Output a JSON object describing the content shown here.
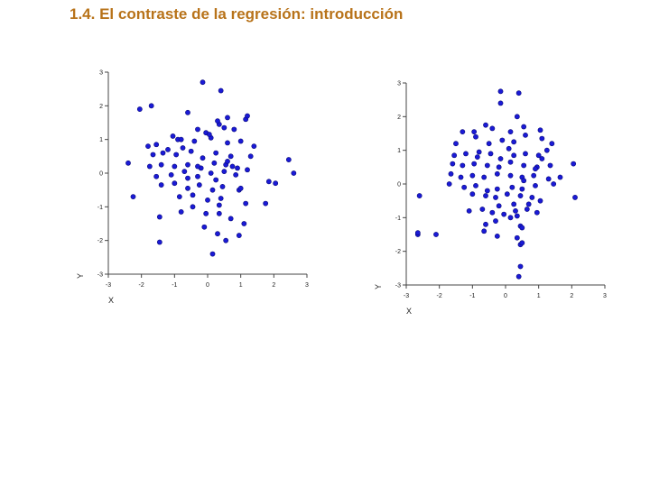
{
  "page": {
    "title": "1.4. El contraste de la regresión: introducción"
  },
  "style": {
    "title_color": "#b8731a",
    "point_color": "#1a1ad6",
    "point_edge": "#0a0a7a",
    "axis_color": "#444444"
  },
  "chart_data": [
    {
      "type": "scatter",
      "title": "",
      "xlabel": "X",
      "ylabel": "Y",
      "xlim": [
        -3,
        3
      ],
      "ylim": [
        -3,
        3
      ],
      "x_ticks": [
        "-3",
        "-2",
        "-1",
        "0",
        "1",
        "2",
        "3"
      ],
      "y_ticks": [
        "3",
        "2",
        "1",
        "0",
        "-1",
        "-2",
        "-3"
      ],
      "grid": false,
      "x": [
        -0.15,
        0.4,
        -2.05,
        -1.7,
        -0.6,
        0.6,
        1.15,
        1.2,
        0.35,
        -0.3,
        -0.05,
        0.3,
        0.8,
        -0.9,
        -1.8,
        -1.55,
        -1.2,
        -0.8,
        -0.4,
        0.1,
        0.6,
        1.0,
        1.4,
        -1.65,
        -1.35,
        -0.95,
        -0.5,
        -0.15,
        0.25,
        0.7,
        1.3,
        2.45,
        -2.4,
        -1.75,
        -1.4,
        -1.0,
        -0.6,
        -0.2,
        0.2,
        0.55,
        0.9,
        2.6,
        -1.55,
        -1.1,
        -0.7,
        -0.3,
        0.1,
        0.5,
        0.85,
        1.2,
        1.85,
        2.05,
        -1.4,
        -1.0,
        -0.6,
        -0.25,
        0.15,
        0.45,
        0.95,
        1.0,
        -2.25,
        -0.85,
        -0.45,
        0.0,
        0.4,
        1.15,
        1.75,
        -1.45,
        -0.8,
        -0.45,
        -0.05,
        0.35,
        0.7,
        1.1,
        -0.1,
        0.3,
        0.55,
        0.95,
        0.15,
        -1.45,
        0.6,
        -0.3,
        0.25,
        -0.6,
        0.75,
        -1.05,
        0.05,
        0.5,
        -0.75,
        0.35
      ],
      "y": [
        2.7,
        2.45,
        1.9,
        2.0,
        1.8,
        1.65,
        1.6,
        1.7,
        1.45,
        1.3,
        1.2,
        1.55,
        1.3,
        1.0,
        0.8,
        0.85,
        0.7,
        1.0,
        0.95,
        1.05,
        0.9,
        0.95,
        0.8,
        0.55,
        0.6,
        0.55,
        0.65,
        0.45,
        0.6,
        0.5,
        0.5,
        0.4,
        0.3,
        0.2,
        0.25,
        0.2,
        0.25,
        0.15,
        0.3,
        0.25,
        0.15,
        0.0,
        -0.1,
        -0.05,
        0.05,
        -0.1,
        0.0,
        0.05,
        -0.05,
        0.1,
        -0.25,
        -0.3,
        -0.35,
        -0.3,
        -0.45,
        -0.35,
        -0.5,
        -0.4,
        -0.5,
        -0.45,
        -0.7,
        -0.7,
        -0.65,
        -0.8,
        -0.75,
        -0.9,
        -0.9,
        -1.3,
        -1.15,
        -1.0,
        -1.2,
        -1.2,
        -1.35,
        -1.5,
        -1.6,
        -1.8,
        -2.0,
        -1.85,
        -2.4,
        -2.05,
        0.35,
        0.2,
        -0.2,
        -0.15,
        0.2,
        1.1,
        1.15,
        1.35,
        0.75,
        -0.95
      ]
    },
    {
      "type": "scatter",
      "title": "",
      "xlabel": "X",
      "ylabel": "Y",
      "xlim": [
        -3,
        3
      ],
      "ylim": [
        -3,
        3
      ],
      "x_ticks": [
        "-3",
        "-2",
        "-1",
        "0",
        "1",
        "2",
        "3"
      ],
      "y_ticks": [
        "3",
        "2",
        "1",
        "0",
        "-1",
        "-2",
        "-3"
      ],
      "grid": false,
      "x": [
        -0.15,
        0.4,
        -0.15,
        0.35,
        1.05,
        -0.6,
        -0.95,
        -0.4,
        0.15,
        0.55,
        1.1,
        -1.3,
        -0.9,
        -0.5,
        -0.1,
        0.25,
        0.6,
        1.4,
        -1.55,
        -1.2,
        -0.85,
        -0.45,
        -0.15,
        0.25,
        0.6,
        1.0,
        -1.6,
        -1.3,
        -0.95,
        -0.55,
        -0.2,
        0.15,
        0.55,
        0.95,
        1.35,
        2.05,
        -1.65,
        -1.35,
        -1.0,
        -0.65,
        -0.25,
        0.15,
        0.5,
        0.85,
        1.3,
        1.65,
        -1.7,
        -1.25,
        -0.9,
        -0.55,
        -0.25,
        0.2,
        0.5,
        0.9,
        1.45,
        -2.6,
        -1.0,
        -0.6,
        -0.3,
        0.05,
        0.45,
        0.8,
        1.05,
        2.1,
        -2.65,
        -1.1,
        -0.7,
        -0.4,
        -0.05,
        0.3,
        0.65,
        0.95,
        -0.6,
        -0.3,
        0.15,
        0.45,
        -2.65,
        -2.1,
        -0.65,
        -0.25,
        0.35,
        0.45,
        0.5,
        0.45,
        0.4,
        0.5,
        0.35,
        -0.2,
        0.55,
        1.25,
        0.1,
        -0.8,
        0.9,
        0.25,
        1.1,
        -1.5,
        0.7
      ],
      "y": [
        2.75,
        2.7,
        2.4,
        2.0,
        1.6,
        1.75,
        1.55,
        1.65,
        1.55,
        1.7,
        1.35,
        1.55,
        1.4,
        1.2,
        1.3,
        1.25,
        1.45,
        1.2,
        0.85,
        0.9,
        0.8,
        0.9,
        0.75,
        0.85,
        0.9,
        0.85,
        0.6,
        0.55,
        0.6,
        0.55,
        0.5,
        0.65,
        0.55,
        0.5,
        0.55,
        0.6,
        0.3,
        0.2,
        0.25,
        0.2,
        0.3,
        0.25,
        0.2,
        0.25,
        0.15,
        0.2,
        0.0,
        -0.1,
        -0.05,
        -0.2,
        -0.15,
        -0.1,
        -0.15,
        -0.05,
        0.0,
        -0.35,
        -0.3,
        -0.35,
        -0.4,
        -0.3,
        -0.35,
        -0.4,
        -0.5,
        -0.4,
        -1.5,
        -0.8,
        -0.75,
        -0.85,
        -0.9,
        -0.8,
        -0.75,
        -0.85,
        -1.2,
        -1.1,
        -1.0,
        -1.25,
        -1.45,
        -1.5,
        -1.4,
        -1.55,
        -1.6,
        -1.8,
        -1.75,
        -2.45,
        -2.75,
        -1.3,
        -0.95,
        -0.65,
        0.1,
        1.0,
        1.05,
        0.95,
        0.45,
        -0.6,
        0.75,
        1.2,
        -0.6
      ]
    }
  ]
}
